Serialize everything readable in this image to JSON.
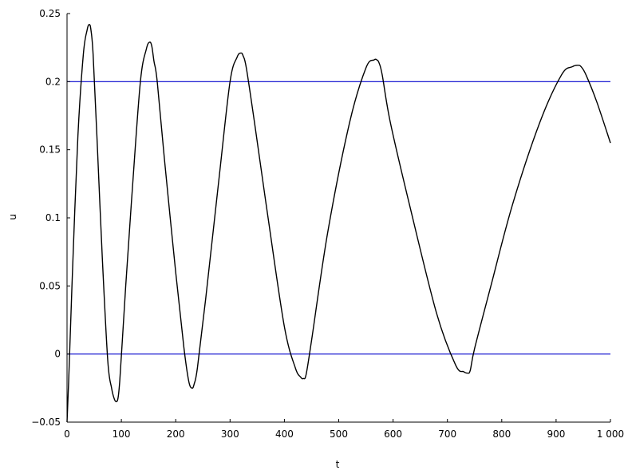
{
  "chart_data": {
    "type": "line",
    "title": "",
    "xlabel": "t",
    "ylabel": "u",
    "xlim": [
      0,
      1000
    ],
    "ylim": [
      -0.05,
      0.25
    ],
    "grid": false,
    "legend": "none",
    "x_ticks": [
      0,
      100,
      200,
      300,
      400,
      500,
      600,
      700,
      800,
      900,
      1000
    ],
    "x_tick_labels": [
      "0",
      "100",
      "200",
      "300",
      "400",
      "500",
      "600",
      "700",
      "800",
      "900",
      "1 000"
    ],
    "y_ticks": [
      -0.05,
      0,
      0.05,
      0.1,
      0.15,
      0.2,
      0.25
    ],
    "y_tick_labels": [
      "−0.05",
      "0",
      "0.05",
      "0.1",
      "0.15",
      "0.2",
      "0.25"
    ],
    "hlines": [
      {
        "y": 0.2,
        "color": "#0000cc"
      },
      {
        "y": 0.0,
        "color": "#0000cc"
      }
    ],
    "series": [
      {
        "color": "#000000",
        "x": [
          0,
          3,
          10,
          20,
          30,
          37,
          41,
          44,
          48,
          55,
          65,
          75,
          82,
          87,
          91,
          94,
          97,
          101,
          108,
          120,
          135,
          146,
          152,
          156,
          160,
          166,
          180,
          200,
          215,
          224,
          230,
          234,
          240,
          255,
          280,
          300,
          313,
          320,
          324,
          330,
          345,
          370,
          400,
          420,
          430,
          435,
          440,
          450,
          480,
          520,
          550,
          565,
          570,
          574,
          580,
          595,
          630,
          680,
          715,
          730,
          737,
          742,
          750,
          780,
          820,
          870,
          910,
          930,
          940,
          946,
          955,
          975,
          1000
        ],
        "y": [
          -0.05,
          -0.02,
          0.06,
          0.16,
          0.22,
          0.238,
          0.242,
          0.238,
          0.22,
          0.16,
          0.07,
          -0.005,
          -0.025,
          -0.033,
          -0.035,
          -0.032,
          -0.02,
          0.005,
          0.05,
          0.12,
          0.2,
          0.224,
          0.229,
          0.226,
          0.215,
          0.2,
          0.14,
          0.06,
          0.005,
          -0.02,
          -0.025,
          -0.022,
          -0.01,
          0.04,
          0.13,
          0.2,
          0.218,
          0.221,
          0.219,
          0.21,
          0.17,
          0.1,
          0.02,
          -0.01,
          -0.017,
          -0.018,
          -0.015,
          0.01,
          0.09,
          0.17,
          0.21,
          0.216,
          0.216,
          0.214,
          0.205,
          0.17,
          0.11,
          0.03,
          -0.008,
          -0.013,
          -0.014,
          -0.012,
          0.004,
          0.05,
          0.11,
          0.17,
          0.205,
          0.211,
          0.212,
          0.211,
          0.205,
          0.185,
          0.155
        ]
      }
    ]
  }
}
